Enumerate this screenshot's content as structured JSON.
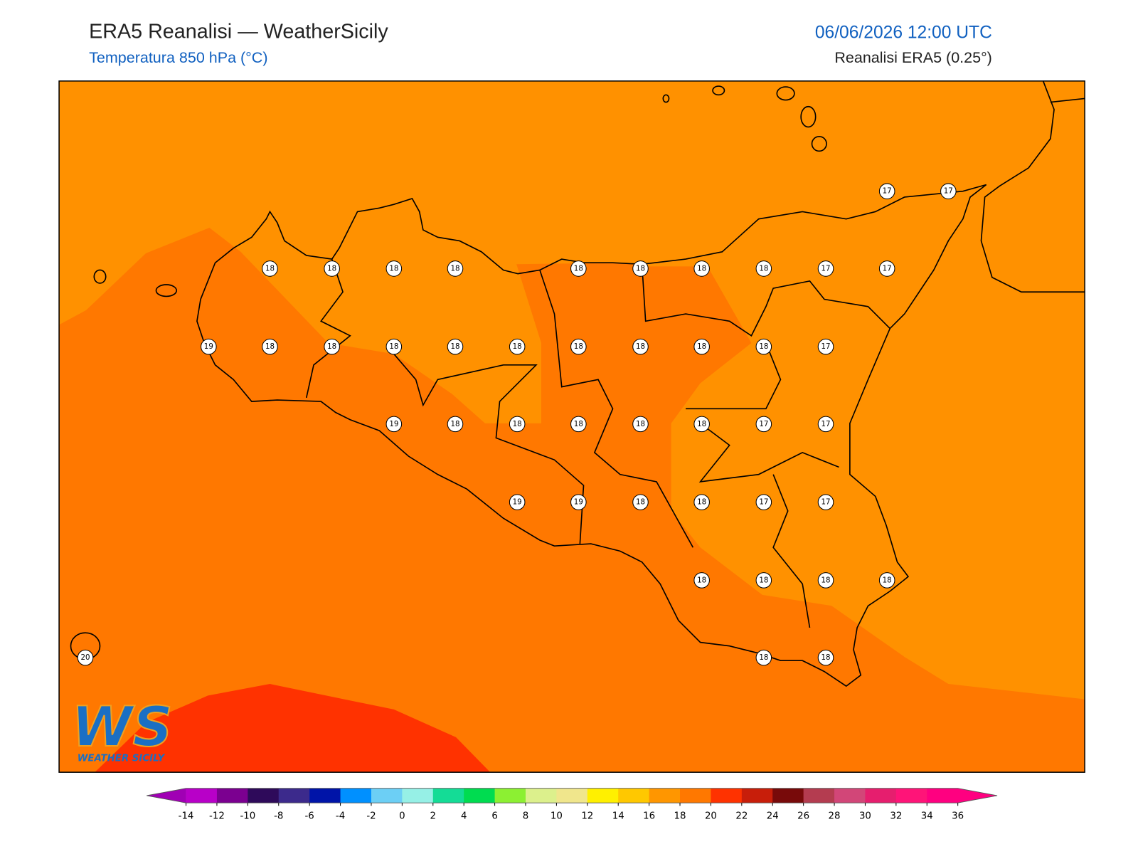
{
  "header": {
    "title": "ERA5 Reanalisi — WeatherSicily",
    "subtitle": "Temperatura 850 hPa (°C)",
    "datetime": "06/06/2026 12:00 UTC",
    "source": "Reanalisi ERA5 (0.25°)"
  },
  "map": {
    "point_values": [
      17,
      17,
      18,
      18,
      18,
      18,
      18,
      18,
      18,
      18,
      17,
      17,
      19,
      18,
      18,
      18,
      18,
      18,
      18,
      18,
      18,
      18,
      17,
      19,
      18,
      18,
      18,
      18,
      18,
      17,
      17,
      19,
      19,
      18,
      18,
      17,
      17,
      18,
      18,
      18,
      18,
      20,
      18,
      18
    ],
    "band_colors": {
      "low": "#ff9100",
      "mid": "#ff7800",
      "high": "#ff3200"
    }
  },
  "logo": {
    "mark": "WS",
    "text": "WEATHER SICILY"
  },
  "colorbar": {
    "ticks": [
      -14,
      -12,
      -10,
      -8,
      -6,
      -4,
      -2,
      0,
      2,
      4,
      6,
      8,
      10,
      12,
      14,
      16,
      18,
      20,
      22,
      24,
      26,
      28,
      30,
      32,
      34,
      36
    ],
    "colors": [
      "#b800c8",
      "#7b0090",
      "#2e0a5a",
      "#3c2a8c",
      "#0014a8",
      "#0090ff",
      "#6ccff5",
      "#96f0e6",
      "#14dc96",
      "#00dc50",
      "#8cf032",
      "#dcf08c",
      "#f0e68c",
      "#fff000",
      "#ffc800",
      "#ff9600",
      "#ff7800",
      "#ff3200",
      "#c81e0a",
      "#780a0a",
      "#b43c50",
      "#d24678",
      "#e61e6e",
      "#ff1478",
      "#ff0080"
    ],
    "under_color": "#a000b4",
    "over_color": "#ff0080"
  }
}
